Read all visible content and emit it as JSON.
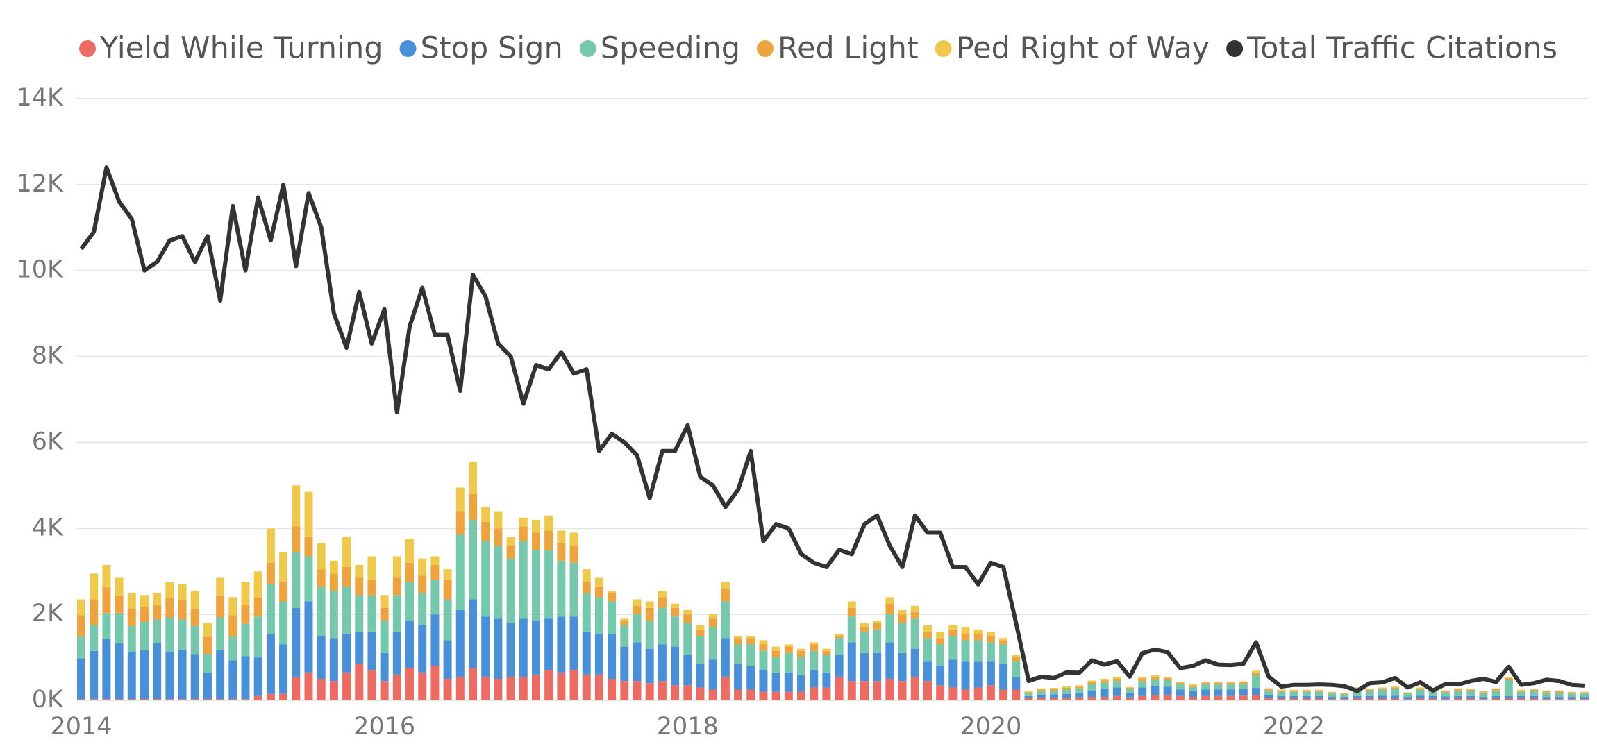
{
  "chart_data": {
    "type": "bar",
    "stacked": true,
    "grid": true,
    "categories": [
      "2014",
      null,
      null,
      null,
      null,
      null,
      null,
      null,
      null,
      null,
      null,
      null,
      null,
      null,
      null,
      null,
      null,
      null,
      null,
      null,
      null,
      null,
      null,
      null,
      "2016",
      null,
      null,
      null,
      null,
      null,
      null,
      null,
      null,
      null,
      null,
      null,
      null,
      null,
      null,
      null,
      null,
      null,
      null,
      null,
      null,
      null,
      null,
      null,
      "2018",
      null,
      null,
      null,
      null,
      null,
      null,
      null,
      null,
      null,
      null,
      null,
      null,
      null,
      null,
      null,
      null,
      null,
      null,
      null,
      null,
      null,
      null,
      null,
      "2020",
      null,
      null,
      null,
      null,
      null,
      null,
      null,
      null,
      null,
      null,
      null,
      null,
      null,
      null,
      null,
      null,
      null,
      null,
      null,
      null,
      null,
      null,
      null,
      "2022",
      null,
      null,
      null,
      null,
      null,
      null,
      null,
      null,
      null,
      null,
      null,
      null,
      null,
      null,
      null,
      null,
      null,
      null,
      null,
      null,
      null,
      null,
      null
    ],
    "ylim": [
      0,
      14000
    ],
    "yticks": [
      {
        "value": 0,
        "label": "0K"
      },
      {
        "value": 2000,
        "label": "2K"
      },
      {
        "value": 4000,
        "label": "4K"
      },
      {
        "value": 6000,
        "label": "6K"
      },
      {
        "value": 8000,
        "label": "8K"
      },
      {
        "value": 10000,
        "label": "10K"
      },
      {
        "value": 12000,
        "label": "12K"
      },
      {
        "value": 14000,
        "label": "14K"
      }
    ],
    "series": [
      {
        "name": "Yield While Turning",
        "color": "#ec6b63",
        "values": [
          30,
          30,
          30,
          30,
          30,
          30,
          30,
          30,
          30,
          30,
          30,
          30,
          30,
          30,
          100,
          150,
          150,
          550,
          650,
          500,
          450,
          650,
          850,
          700,
          450,
          600,
          750,
          650,
          800,
          500,
          550,
          750,
          550,
          500,
          550,
          550,
          600,
          700,
          650,
          700,
          600,
          600,
          500,
          450,
          450,
          400,
          450,
          350,
          350,
          300,
          250,
          550,
          250,
          250,
          200,
          200,
          200,
          200,
          300,
          300,
          550,
          450,
          450,
          450,
          500,
          450,
          550,
          450,
          350,
          300,
          250,
          300,
          350,
          250,
          250,
          50,
          50,
          50,
          60,
          70,
          80,
          80,
          100,
          70,
          100,
          120,
          120,
          100,
          80,
          100,
          100,
          100,
          110,
          120,
          50,
          40,
          40,
          40,
          40,
          30,
          30,
          40,
          40,
          40,
          40,
          30,
          40,
          40,
          30,
          40,
          40,
          30,
          40,
          40,
          40,
          40,
          30,
          30,
          30,
          30
        ]
      },
      {
        "name": "Stop Sign",
        "color": "#4a90d9",
        "values": [
          950,
          1120,
          1400,
          1300,
          1100,
          1150,
          1300,
          1100,
          1150,
          1050,
          600,
          1150,
          900,
          1000,
          900,
          1400,
          1150,
          1600,
          1650,
          1000,
          1000,
          900,
          750,
          900,
          650,
          1000,
          1100,
          1100,
          1200,
          900,
          1550,
          1600,
          1400,
          1400,
          1250,
          1350,
          1250,
          1200,
          1300,
          1250,
          1000,
          950,
          1050,
          800,
          900,
          800,
          850,
          900,
          700,
          550,
          700,
          900,
          600,
          550,
          500,
          450,
          450,
          400,
          400,
          350,
          500,
          900,
          650,
          650,
          850,
          650,
          650,
          450,
          450,
          650,
          650,
          600,
          550,
          600,
          300,
          50,
          80,
          90,
          90,
          110,
          150,
          180,
          200,
          110,
          200,
          220,
          200,
          150,
          130,
          150,
          150,
          150,
          160,
          170,
          80,
          60,
          60,
          60,
          60,
          50,
          50,
          60,
          60,
          70,
          70,
          50,
          70,
          60,
          60,
          60,
          60,
          50,
          60,
          60,
          60,
          60,
          50,
          50,
          50,
          50
        ]
      },
      {
        "name": "Speeding",
        "color": "#76c8ad",
        "values": [
          500,
          600,
          600,
          700,
          600,
          650,
          550,
          800,
          700,
          650,
          450,
          750,
          550,
          750,
          950,
          1150,
          1000,
          1300,
          1050,
          1150,
          1100,
          1100,
          850,
          850,
          750,
          850,
          900,
          750,
          800,
          950,
          1750,
          1850,
          1750,
          1700,
          1500,
          1800,
          1650,
          1600,
          1300,
          1250,
          900,
          850,
          750,
          500,
          650,
          650,
          850,
          700,
          750,
          650,
          750,
          850,
          450,
          500,
          450,
          350,
          450,
          400,
          450,
          400,
          400,
          600,
          500,
          550,
          650,
          700,
          700,
          550,
          500,
          550,
          500,
          500,
          450,
          450,
          350,
          70,
          80,
          80,
          100,
          100,
          150,
          150,
          150,
          80,
          150,
          150,
          150,
          120,
          100,
          120,
          120,
          120,
          110,
          300,
          100,
          100,
          100,
          100,
          100,
          80,
          60,
          150,
          120,
          140,
          150,
          80,
          140,
          120,
          100,
          130,
          120,
          100,
          130,
          380,
          100,
          120,
          100,
          100,
          80,
          80
        ]
      },
      {
        "name": "Red Light",
        "color": "#eda33e",
        "values": [
          500,
          600,
          600,
          400,
          400,
          350,
          350,
          450,
          450,
          400,
          400,
          500,
          500,
          450,
          450,
          500,
          450,
          600,
          450,
          400,
          400,
          450,
          400,
          350,
          300,
          400,
          450,
          400,
          350,
          450,
          550,
          600,
          450,
          400,
          300,
          350,
          400,
          450,
          400,
          400,
          250,
          250,
          200,
          100,
          200,
          300,
          250,
          200,
          200,
          150,
          200,
          300,
          150,
          150,
          150,
          150,
          150,
          150,
          150,
          100,
          50,
          200,
          100,
          150,
          250,
          200,
          150,
          150,
          150,
          150,
          150,
          150,
          150,
          100,
          100,
          20,
          40,
          40,
          40,
          40,
          50,
          50,
          50,
          30,
          60,
          60,
          50,
          40,
          40,
          40,
          40,
          40,
          40,
          60,
          30,
          30,
          30,
          30,
          30,
          20,
          20,
          30,
          30,
          30,
          40,
          20,
          30,
          30,
          20,
          30,
          30,
          20,
          30,
          40,
          30,
          30,
          30,
          30,
          20,
          20
        ]
      },
      {
        "name": "Ped Right of Way",
        "color": "#efc94c",
        "values": [
          370,
          600,
          520,
          420,
          370,
          270,
          270,
          370,
          370,
          420,
          320,
          420,
          420,
          520,
          600,
          800,
          700,
          950,
          1050,
          600,
          300,
          700,
          300,
          550,
          300,
          500,
          550,
          400,
          200,
          250,
          550,
          750,
          350,
          400,
          200,
          200,
          300,
          350,
          300,
          300,
          300,
          200,
          50,
          50,
          150,
          150,
          150,
          100,
          100,
          100,
          100,
          150,
          50,
          50,
          100,
          100,
          50,
          50,
          50,
          50,
          50,
          150,
          100,
          50,
          150,
          100,
          150,
          150,
          150,
          100,
          150,
          100,
          100,
          50,
          50,
          20,
          30,
          30,
          30,
          30,
          30,
          40,
          50,
          20,
          30,
          30,
          30,
          20,
          20,
          20,
          20,
          20,
          20,
          40,
          20,
          20,
          20,
          20,
          20,
          20,
          10,
          20,
          20,
          20,
          20,
          10,
          20,
          20,
          20,
          20,
          20,
          20,
          20,
          30,
          20,
          20,
          20,
          20,
          20,
          20
        ]
      },
      {
        "name": "Total Traffic Citations",
        "color": "#333333",
        "type": "line",
        "values": [
          10500,
          10900,
          12400,
          11600,
          11200,
          10000,
          10200,
          10700,
          10800,
          10200,
          10800,
          9300,
          11500,
          10000,
          11700,
          10700,
          12000,
          10100,
          11800,
          11000,
          9000,
          8200,
          9500,
          8300,
          9100,
          6700,
          8700,
          9600,
          8500,
          8500,
          7200,
          9900,
          9400,
          8300,
          8000,
          6900,
          7800,
          7700,
          8100,
          7600,
          7700,
          5800,
          6200,
          6000,
          5700,
          4700,
          5800,
          5800,
          6400,
          5200,
          5000,
          4500,
          4900,
          5800,
          3700,
          4100,
          4000,
          3400,
          3200,
          3100,
          3500,
          3400,
          4100,
          4300,
          3600,
          3100,
          4300,
          3900,
          3900,
          3100,
          3100,
          2700,
          3200,
          3100,
          1800,
          450,
          550,
          520,
          650,
          640,
          930,
          830,
          910,
          550,
          1100,
          1180,
          1120,
          750,
          800,
          930,
          830,
          820,
          850,
          1350,
          550,
          320,
          360,
          360,
          370,
          360,
          330,
          220,
          400,
          420,
          520,
          300,
          420,
          230,
          380,
          370,
          450,
          500,
          430,
          780,
          360,
          400,
          480,
          450,
          360,
          340
        ]
      }
    ]
  }
}
